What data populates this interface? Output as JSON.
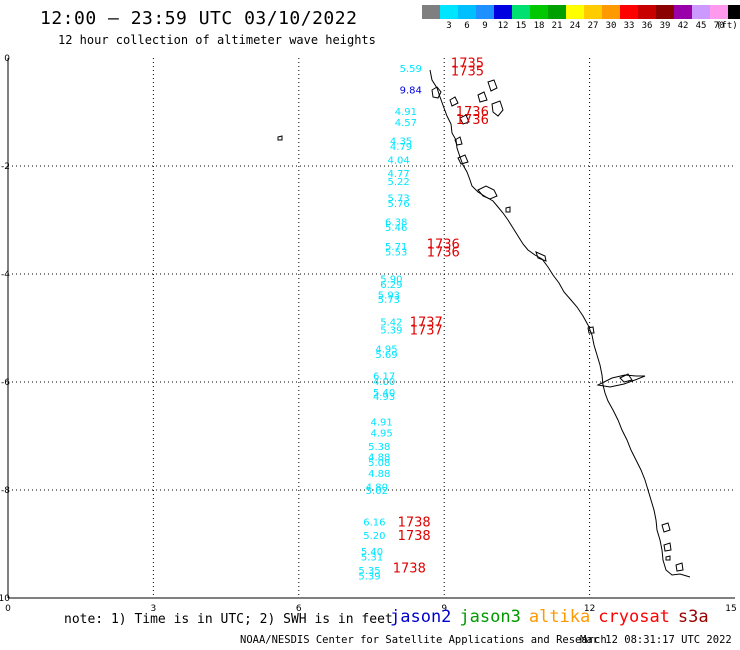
{
  "header": {
    "title": "12:00 – 23:59 UTC 03/10/2022",
    "subtitle": "12 hour collection of altimeter wave heights"
  },
  "legend": {
    "unit": "(ft)",
    "bins": [
      {
        "label": "",
        "color": "#7f7f7f"
      },
      {
        "label": "3",
        "color": "#00e5ff"
      },
      {
        "label": "6",
        "color": "#00bfff"
      },
      {
        "label": "9",
        "color": "#1e90ff"
      },
      {
        "label": "12",
        "color": "#0000e0"
      },
      {
        "label": "15",
        "color": "#00e070"
      },
      {
        "label": "18",
        "color": "#00c800"
      },
      {
        "label": "21",
        "color": "#00a000"
      },
      {
        "label": "24",
        "color": "#ffff00"
      },
      {
        "label": "27",
        "color": "#ffcc00"
      },
      {
        "label": "30",
        "color": "#ff9900"
      },
      {
        "label": "33",
        "color": "#ff0000"
      },
      {
        "label": "36",
        "color": "#c80000"
      },
      {
        "label": "39",
        "color": "#8b0000"
      },
      {
        "label": "42",
        "color": "#9900aa"
      },
      {
        "label": "45",
        "color": "#cc99ff"
      },
      {
        "label": "70",
        "color": "#ff99ee"
      },
      {
        "label": "",
        "color": "#000000"
      }
    ]
  },
  "axes": {
    "x_ticks": [
      "0",
      "3",
      "6",
      "9",
      "12",
      "15"
    ],
    "y_ticks": [
      "0",
      "-2",
      "-4",
      "-6",
      "-8",
      "-10"
    ],
    "x_range": [
      0,
      15
    ],
    "y_range": [
      -10,
      0
    ]
  },
  "wave_labels": [
    {
      "text": "5.59",
      "lat": -0.2,
      "lon": 8.0,
      "color": "#00e5ff"
    },
    {
      "text": "9.84",
      "lat": -0.6,
      "lon": 8.0,
      "color": "#0000e0"
    },
    {
      "text": "4.91",
      "lat": -1.0,
      "lon": 7.9,
      "color": "#00e5ff"
    },
    {
      "text": "4.57",
      "lat": -1.2,
      "lon": 7.9,
      "color": "#00e5ff"
    },
    {
      "text": "4.35",
      "lat": -1.55,
      "lon": 7.8,
      "color": "#00e5ff"
    },
    {
      "text": "4.79",
      "lat": -1.65,
      "lon": 7.8,
      "color": "#00e5ff"
    },
    {
      "text": "4.04",
      "lat": -1.9,
      "lon": 7.75,
      "color": "#00e5ff"
    },
    {
      "text": "4.77",
      "lat": -2.15,
      "lon": 7.75,
      "color": "#00e5ff"
    },
    {
      "text": "5.22",
      "lat": -2.3,
      "lon": 7.75,
      "color": "#00e5ff"
    },
    {
      "text": "5.73",
      "lat": -2.6,
      "lon": 7.75,
      "color": "#00e5ff"
    },
    {
      "text": "5.76",
      "lat": -2.7,
      "lon": 7.75,
      "color": "#00e5ff"
    },
    {
      "text": "6.38",
      "lat": -3.05,
      "lon": 7.7,
      "color": "#00e5ff"
    },
    {
      "text": "5.46",
      "lat": -3.15,
      "lon": 7.7,
      "color": "#00e5ff"
    },
    {
      "text": "5.71",
      "lat": -3.5,
      "lon": 7.7,
      "color": "#00e5ff"
    },
    {
      "text": "5.53",
      "lat": -3.6,
      "lon": 7.7,
      "color": "#00e5ff"
    },
    {
      "text": "5.90",
      "lat": -4.1,
      "lon": 7.6,
      "color": "#00e5ff"
    },
    {
      "text": "6.29",
      "lat": -4.2,
      "lon": 7.6,
      "color": "#00e5ff"
    },
    {
      "text": "5.93",
      "lat": -4.4,
      "lon": 7.55,
      "color": "#00e5ff"
    },
    {
      "text": "5.73",
      "lat": -4.48,
      "lon": 7.55,
      "color": "#00e5ff"
    },
    {
      "text": "5.42",
      "lat": -4.9,
      "lon": 7.6,
      "color": "#00e5ff"
    },
    {
      "text": "5.39",
      "lat": -5.05,
      "lon": 7.6,
      "color": "#00e5ff"
    },
    {
      "text": "4.95",
      "lat": -5.4,
      "lon": 7.5,
      "color": "#00e5ff"
    },
    {
      "text": "5.69",
      "lat": -5.5,
      "lon": 7.5,
      "color": "#00e5ff"
    },
    {
      "text": "6.17",
      "lat": -5.9,
      "lon": 7.45,
      "color": "#00e5ff"
    },
    {
      "text": "4.00",
      "lat": -6.0,
      "lon": 7.45,
      "color": "#00e5ff"
    },
    {
      "text": "5.40",
      "lat": -6.2,
      "lon": 7.45,
      "color": "#00e5ff"
    },
    {
      "text": "4.93",
      "lat": -6.28,
      "lon": 7.45,
      "color": "#00e5ff"
    },
    {
      "text": "4.91",
      "lat": -6.75,
      "lon": 7.4,
      "color": "#00e5ff"
    },
    {
      "text": "4.95",
      "lat": -6.95,
      "lon": 7.4,
      "color": "#00e5ff"
    },
    {
      "text": "5.38",
      "lat": -7.2,
      "lon": 7.35,
      "color": "#00e5ff"
    },
    {
      "text": "4.88",
      "lat": -7.4,
      "lon": 7.35,
      "color": "#00e5ff"
    },
    {
      "text": "5.08",
      "lat": -7.5,
      "lon": 7.35,
      "color": "#00e5ff"
    },
    {
      "text": "4.88",
      "lat": -7.7,
      "lon": 7.35,
      "color": "#00e5ff"
    },
    {
      "text": "4.80",
      "lat": -7.95,
      "lon": 7.3,
      "color": "#00e5ff"
    },
    {
      "text": "5.02",
      "lat": -8.02,
      "lon": 7.3,
      "color": "#00e5ff"
    },
    {
      "text": "6.16",
      "lat": -8.6,
      "lon": 7.25,
      "color": "#00e5ff"
    },
    {
      "text": "5.20",
      "lat": -8.85,
      "lon": 7.25,
      "color": "#00e5ff"
    },
    {
      "text": "5.40",
      "lat": -9.15,
      "lon": 7.2,
      "color": "#00e5ff"
    },
    {
      "text": "5.31",
      "lat": -9.25,
      "lon": 7.2,
      "color": "#00e5ff"
    },
    {
      "text": "5.35",
      "lat": -9.5,
      "lon": 7.15,
      "color": "#00e5ff"
    },
    {
      "text": "5.39",
      "lat": -9.6,
      "lon": 7.15,
      "color": "#00e5ff"
    }
  ],
  "time_labels": [
    {
      "text": "1735",
      "lat": -0.1,
      "lon": 8.85
    },
    {
      "text": "1735",
      "lat": -0.25,
      "lon": 8.85
    },
    {
      "text": "1736",
      "lat": -1.0,
      "lon": 8.95
    },
    {
      "text": "1736",
      "lat": -1.15,
      "lon": 8.95
    },
    {
      "text": "1736",
      "lat": -3.45,
      "lon": 8.35
    },
    {
      "text": "1736",
      "lat": -3.6,
      "lon": 8.35
    },
    {
      "text": "1737",
      "lat": -4.9,
      "lon": 8.0
    },
    {
      "text": "1737",
      "lat": -5.05,
      "lon": 8.0
    },
    {
      "text": "1738",
      "lat": -8.6,
      "lon": 7.75
    },
    {
      "text": "1738",
      "lat": -8.85,
      "lon": 7.75
    },
    {
      "text": "1738",
      "lat": -9.45,
      "lon": 7.65
    }
  ],
  "note": "note: 1) Time is in UTC; 2) SWH is in feet",
  "missions": [
    {
      "name": "jason2",
      "color": "#0000cc"
    },
    {
      "name": "jason3",
      "color": "#009900"
    },
    {
      "name": "altika",
      "color": "#ff9900"
    },
    {
      "name": "cryosat",
      "color": "#ff0000"
    },
    {
      "name": "s3a",
      "color": "#990000"
    }
  ],
  "footer": {
    "credit": "NOAA/NESDIS Center for Satellite Applications and Research",
    "timestamp": "Mar 12 08:31:17 UTC 2022"
  }
}
